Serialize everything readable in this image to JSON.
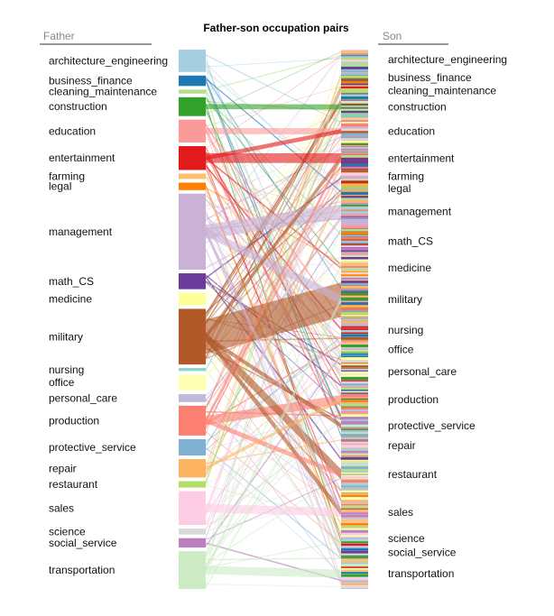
{
  "chart_data": {
    "type": "parallel_sets",
    "title": "Father-son occupation pairs",
    "left_axis_label": "Father",
    "right_axis_label": "Son",
    "categories": [
      {
        "name": "architecture_engineering",
        "color": "#a6cee3",
        "father_share": 0.045,
        "son_share": 0.032
      },
      {
        "name": "business_finance",
        "color": "#1f78b4",
        "father_share": 0.021,
        "son_share": 0.024
      },
      {
        "name": "cleaning_maintenance",
        "color": "#b2df8a",
        "father_share": 0.008,
        "son_share": 0.018
      },
      {
        "name": "construction",
        "color": "#33a02c",
        "father_share": 0.038,
        "son_share": 0.033
      },
      {
        "name": "education",
        "color": "#fb9a99",
        "father_share": 0.046,
        "son_share": 0.044
      },
      {
        "name": "entertainment",
        "color": "#e31a1c",
        "father_share": 0.048,
        "son_share": 0.041
      },
      {
        "name": "farming",
        "color": "#fdbf6f",
        "father_share": 0.011,
        "son_share": 0.016
      },
      {
        "name": "legal",
        "color": "#ff7f00",
        "father_share": 0.015,
        "son_share": 0.023
      },
      {
        "name": "management",
        "color": "#cab2d6",
        "father_share": 0.153,
        "son_share": 0.05
      },
      {
        "name": "math_CS",
        "color": "#6a3d9a",
        "father_share": 0.032,
        "son_share": 0.043
      },
      {
        "name": "medicine",
        "color": "#ffff99",
        "father_share": 0.025,
        "son_share": 0.041
      },
      {
        "name": "military",
        "color": "#b15928",
        "father_share": 0.112,
        "son_share": 0.06
      },
      {
        "name": "nursing",
        "color": "#8dd3c7",
        "father_share": 0.006,
        "son_share": 0.036
      },
      {
        "name": "office",
        "color": "#ffffb3",
        "father_share": 0.032,
        "son_share": 0.026
      },
      {
        "name": "personal_care",
        "color": "#bebada",
        "father_share": 0.016,
        "son_share": 0.043
      },
      {
        "name": "production",
        "color": "#fb8072",
        "father_share": 0.06,
        "son_share": 0.046
      },
      {
        "name": "protective_service",
        "color": "#80b1d3",
        "father_share": 0.033,
        "son_share": 0.036
      },
      {
        "name": "repair",
        "color": "#fdb462",
        "father_share": 0.037,
        "son_share": 0.027
      },
      {
        "name": "restaurant",
        "color": "#b3de69",
        "father_share": 0.013,
        "son_share": 0.064
      },
      {
        "name": "sales",
        "color": "#fccde5",
        "father_share": 0.068,
        "son_share": 0.056
      },
      {
        "name": "science",
        "color": "#d9d9d9",
        "father_share": 0.012,
        "son_share": 0.026
      },
      {
        "name": "social_service",
        "color": "#bc80bd",
        "father_share": 0.019,
        "son_share": 0.019
      },
      {
        "name": "transportation",
        "color": "#ccebc5",
        "father_share": 0.076,
        "son_share": 0.048
      }
    ],
    "highlight_flows": [
      {
        "from": "military",
        "to": "military",
        "weight": 1.0
      },
      {
        "from": "management",
        "to": "management",
        "weight": 0.5
      },
      {
        "from": "entertainment",
        "to": "entertainment",
        "weight": 0.45
      },
      {
        "from": "production",
        "to": "production",
        "weight": 0.35
      },
      {
        "from": "education",
        "to": "education",
        "weight": 0.3
      },
      {
        "from": "construction",
        "to": "construction",
        "weight": 0.3
      },
      {
        "from": "transportation",
        "to": "transportation",
        "weight": 0.3
      },
      {
        "from": "sales",
        "to": "sales",
        "weight": 0.28
      },
      {
        "from": "military",
        "to": "restaurant",
        "weight": 0.28
      },
      {
        "from": "management",
        "to": "military",
        "weight": 0.25
      },
      {
        "from": "military",
        "to": "protective_service",
        "weight": 0.22
      },
      {
        "from": "military",
        "to": "entertainment",
        "weight": 0.22
      },
      {
        "from": "military",
        "to": "sales",
        "weight": 0.2
      },
      {
        "from": "entertainment",
        "to": "education",
        "weight": 0.2
      },
      {
        "from": "production",
        "to": "entertainment",
        "weight": 0.2
      },
      {
        "from": "production",
        "to": "restaurant",
        "weight": 0.18
      },
      {
        "from": "management",
        "to": "sales",
        "weight": 0.18
      },
      {
        "from": "repair",
        "to": "production",
        "weight": 0.18
      },
      {
        "from": "transportation",
        "to": "military",
        "weight": 0.15
      }
    ]
  }
}
